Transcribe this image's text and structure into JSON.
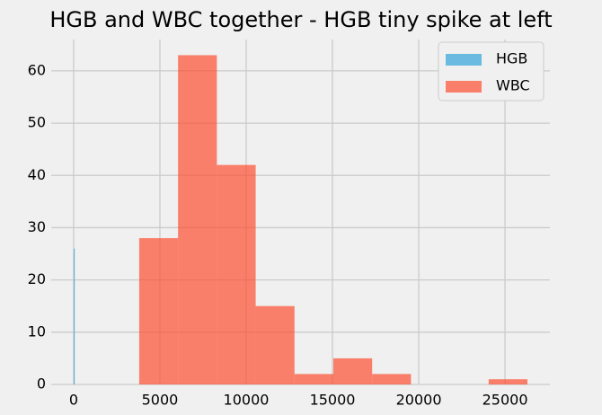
{
  "chart_data": {
    "type": "bar",
    "title": "HGB and WBC together - HGB tiny spike at left",
    "xlabel": "",
    "ylabel": "",
    "xlim": [
      -1300,
      27600
    ],
    "ylim": [
      0,
      66
    ],
    "x_ticks": [
      0,
      5000,
      10000,
      15000,
      20000,
      25000
    ],
    "y_ticks": [
      0,
      10,
      20,
      30,
      40,
      50,
      60
    ],
    "grid": true,
    "legend_position": "top-right",
    "series": [
      {
        "name": "HGB",
        "color": "#30a2da",
        "bins": [
          {
            "x0": 0,
            "x1": 30,
            "value": 26
          }
        ]
      },
      {
        "name": "WBC",
        "color": "#fc4f30",
        "bins": [
          {
            "x0": 3800,
            "x1": 6050,
            "value": 28
          },
          {
            "x0": 6050,
            "x1": 8300,
            "value": 63
          },
          {
            "x0": 8300,
            "x1": 10550,
            "value": 42
          },
          {
            "x0": 10550,
            "x1": 12800,
            "value": 15
          },
          {
            "x0": 12800,
            "x1": 15050,
            "value": 2
          },
          {
            "x0": 15050,
            "x1": 17300,
            "value": 5
          },
          {
            "x0": 17300,
            "x1": 19550,
            "value": 2
          },
          {
            "x0": 19550,
            "x1": 21800,
            "value": 0
          },
          {
            "x0": 21800,
            "x1": 24050,
            "value": 0
          },
          {
            "x0": 24050,
            "x1": 26300,
            "value": 1
          }
        ]
      }
    ]
  }
}
